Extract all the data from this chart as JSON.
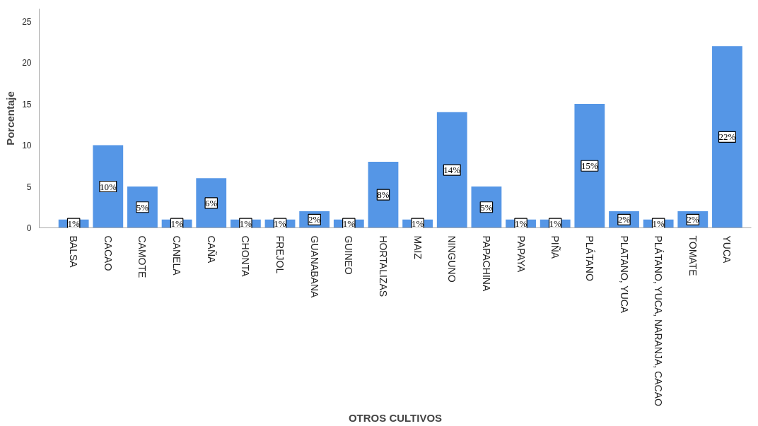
{
  "chart_data": {
    "type": "bar",
    "xlabel": "OTROS CULTIVOS",
    "ylabel": "Porcentaje",
    "categories": [
      "BALSA",
      "CACAO",
      "CAMOTE",
      "CANELA",
      "CAÑA",
      "CHONTA",
      "FREJOL",
      "GUANABANA",
      "GUINEO",
      "HORTALIZAS",
      "MAIZ",
      "NINGUNO",
      "PAPACHINA",
      "PAPAYA",
      "PIÑA",
      "PLÁTANO",
      "PLATANO, YUCA",
      "PLÁTANO, YUCA, NARANJA, CACAO",
      "TOMATE",
      "YUCA"
    ],
    "values": [
      1,
      10,
      5,
      1,
      6,
      1,
      1,
      2,
      1,
      8,
      1,
      14,
      5,
      1,
      1,
      15,
      2,
      1,
      2,
      22
    ],
    "value_labels": [
      "1%",
      "10%",
      "5%",
      "1%",
      "6%",
      "1%",
      "1%",
      "2%",
      "1%",
      "8%",
      "1%",
      "14%",
      "5%",
      "1%",
      "1%",
      "15%",
      "2%",
      "1%",
      "2%",
      "22%"
    ],
    "color": "#5596e6",
    "ylim": [
      0,
      26.5
    ],
    "yticks": [
      0,
      5,
      10,
      15,
      20,
      25
    ],
    "grid": false
  }
}
